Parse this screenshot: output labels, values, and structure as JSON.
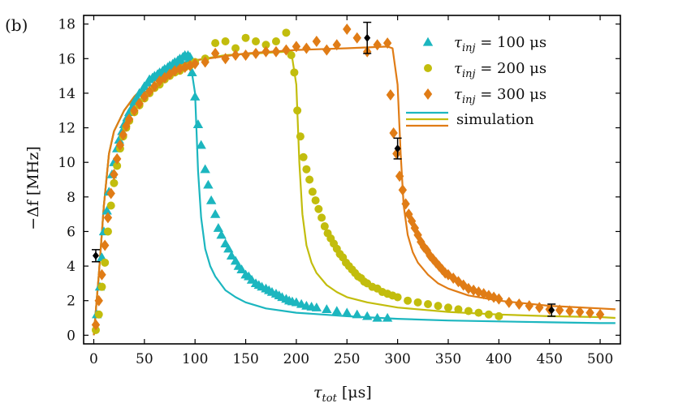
{
  "chart_data": {
    "type": "scatter",
    "panel_label": "(b)",
    "xlabel": "τ_tot [μs]",
    "xlabel_main": "τ",
    "xlabel_sub": "tot",
    "xlabel_unit": " [μs]",
    "ylabel": "−Δf [MHz]",
    "xlim": [
      -10,
      520
    ],
    "ylim": [
      -0.5,
      18.5
    ],
    "xticks": [
      0,
      50,
      100,
      150,
      200,
      250,
      300,
      350,
      400,
      450,
      500
    ],
    "yticks": [
      0,
      2,
      4,
      6,
      8,
      10,
      12,
      14,
      16,
      18
    ],
    "grid": false,
    "legend_position": "top-right",
    "colors": {
      "s100": "#1cb6bf",
      "s200": "#c2bd0d",
      "s300": "#e07c16",
      "errorbar": "#000000"
    },
    "series": [
      {
        "name": "τ_inj = 100 μs",
        "legend_main": "τ",
        "legend_sub": "inj",
        "legend_value": " = 100 μs",
        "marker": "triangle",
        "color": "#1cb6bf",
        "x": [
          3,
          6,
          8,
          10,
          13,
          15,
          18,
          20,
          23,
          25,
          28,
          30,
          33,
          35,
          38,
          40,
          43,
          45,
          48,
          50,
          53,
          55,
          58,
          60,
          63,
          65,
          68,
          70,
          73,
          75,
          78,
          80,
          83,
          85,
          88,
          90,
          93,
          95,
          97,
          100,
          103,
          106,
          110,
          113,
          116,
          120,
          123,
          126,
          130,
          133,
          136,
          140,
          143,
          146,
          150,
          153,
          156,
          160,
          163,
          166,
          170,
          173,
          176,
          180,
          183,
          186,
          190,
          193,
          196,
          200,
          205,
          210,
          215,
          220,
          230,
          240,
          250,
          260,
          270,
          280,
          290
        ],
        "y": [
          1.2,
          2.8,
          4.5,
          6.0,
          7.2,
          8.3,
          9.3,
          10.0,
          10.8,
          11.3,
          11.8,
          12.2,
          12.6,
          12.9,
          13.2,
          13.5,
          13.7,
          14.0,
          14.2,
          14.4,
          14.6,
          14.8,
          14.9,
          15.0,
          15.1,
          15.2,
          15.3,
          15.4,
          15.5,
          15.6,
          15.7,
          15.8,
          15.9,
          16.0,
          16.1,
          16.2,
          16.2,
          16.1,
          15.2,
          13.8,
          12.2,
          11.0,
          9.6,
          8.7,
          7.8,
          7.0,
          6.2,
          5.8,
          5.3,
          5.0,
          4.6,
          4.3,
          4.0,
          3.8,
          3.5,
          3.4,
          3.2,
          3.0,
          2.9,
          2.8,
          2.7,
          2.6,
          2.5,
          2.4,
          2.3,
          2.2,
          2.1,
          2.0,
          1.95,
          1.9,
          1.8,
          1.7,
          1.65,
          1.6,
          1.5,
          1.4,
          1.3,
          1.2,
          1.1,
          1.0,
          1.0
        ]
      },
      {
        "name": "τ_inj = 200 μs",
        "legend_main": "τ",
        "legend_sub": "inj",
        "legend_value": " = 200 μs",
        "marker": "circle",
        "color": "#c2bd0d",
        "x": [
          2,
          5,
          8,
          11,
          14,
          17,
          20,
          23,
          26,
          29,
          32,
          35,
          40,
          45,
          50,
          55,
          60,
          65,
          70,
          75,
          80,
          85,
          90,
          95,
          100,
          110,
          120,
          130,
          140,
          150,
          160,
          170,
          180,
          190,
          195,
          198,
          201,
          204,
          207,
          210,
          213,
          216,
          219,
          222,
          225,
          228,
          231,
          234,
          237,
          240,
          243,
          246,
          249,
          252,
          255,
          258,
          261,
          264,
          267,
          270,
          275,
          280,
          285,
          290,
          295,
          300,
          310,
          320,
          330,
          340,
          350,
          360,
          370,
          380,
          390,
          400
        ],
        "y": [
          0.3,
          1.2,
          2.8,
          4.2,
          6.0,
          7.5,
          8.8,
          9.8,
          10.8,
          11.5,
          12.0,
          12.4,
          12.9,
          13.3,
          13.7,
          14.0,
          14.3,
          14.5,
          14.8,
          15.0,
          15.2,
          15.3,
          15.5,
          15.6,
          15.8,
          16.0,
          16.9,
          17.0,
          16.6,
          17.2,
          17.0,
          16.8,
          17.0,
          17.5,
          16.2,
          15.2,
          13.0,
          11.5,
          10.3,
          9.6,
          9.0,
          8.3,
          7.8,
          7.3,
          6.8,
          6.3,
          5.9,
          5.6,
          5.3,
          5.0,
          4.7,
          4.5,
          4.2,
          4.0,
          3.8,
          3.6,
          3.4,
          3.3,
          3.1,
          3.0,
          2.8,
          2.7,
          2.5,
          2.4,
          2.3,
          2.2,
          2.0,
          1.9,
          1.8,
          1.7,
          1.6,
          1.5,
          1.4,
          1.3,
          1.2,
          1.1
        ]
      },
      {
        "name": "τ_inj = 300 μs",
        "legend_main": "τ",
        "legend_sub": "inj",
        "legend_value": " = 300 μs",
        "marker": "diamond",
        "color": "#e07c16",
        "x": [
          2,
          5,
          8,
          11,
          14,
          17,
          20,
          23,
          26,
          29,
          32,
          35,
          40,
          45,
          50,
          55,
          60,
          65,
          70,
          75,
          80,
          85,
          90,
          95,
          100,
          110,
          120,
          130,
          140,
          150,
          160,
          170,
          180,
          190,
          200,
          210,
          220,
          230,
          240,
          250,
          260,
          270,
          280,
          290,
          293,
          296,
          299,
          302,
          305,
          308,
          311,
          314,
          317,
          320,
          323,
          326,
          329,
          332,
          335,
          338,
          341,
          344,
          347,
          350,
          355,
          360,
          365,
          370,
          375,
          380,
          385,
          390,
          395,
          400,
          410,
          420,
          430,
          440,
          450,
          460,
          470,
          480,
          490,
          500
        ],
        "y": [
          0.6,
          2.0,
          3.5,
          5.2,
          6.8,
          8.2,
          9.3,
          10.2,
          11.0,
          11.6,
          12.1,
          12.5,
          13.0,
          13.4,
          13.8,
          14.1,
          14.4,
          14.7,
          14.9,
          15.1,
          15.3,
          15.4,
          15.5,
          15.6,
          15.7,
          15.8,
          16.3,
          16.0,
          16.2,
          16.2,
          16.3,
          16.4,
          16.4,
          16.5,
          16.7,
          16.6,
          17.0,
          16.5,
          16.8,
          17.7,
          17.2,
          16.4,
          16.8,
          16.9,
          13.9,
          11.7,
          10.5,
          9.2,
          8.4,
          7.6,
          7.0,
          6.6,
          6.2,
          5.8,
          5.4,
          5.1,
          4.9,
          4.6,
          4.4,
          4.2,
          4.0,
          3.8,
          3.6,
          3.5,
          3.3,
          3.1,
          2.9,
          2.7,
          2.6,
          2.5,
          2.4,
          2.3,
          2.2,
          2.1,
          1.9,
          1.8,
          1.7,
          1.6,
          1.5,
          1.45,
          1.4,
          1.35,
          1.3,
          1.2
        ]
      }
    ],
    "simulation": {
      "name": "simulation",
      "curves": [
        {
          "color": "#1cb6bf",
          "x": [
            0,
            5,
            10,
            15,
            20,
            30,
            40,
            50,
            60,
            70,
            80,
            90,
            95,
            100,
            103,
            106,
            110,
            115,
            120,
            130,
            140,
            150,
            170,
            200,
            250,
            300,
            350,
            400,
            450,
            500,
            515
          ],
          "y": [
            0,
            3.5,
            7.5,
            10.5,
            11.8,
            13.0,
            13.8,
            14.4,
            14.9,
            15.3,
            15.6,
            15.8,
            15.9,
            14.0,
            9.5,
            6.8,
            5.0,
            4.0,
            3.4,
            2.6,
            2.2,
            1.9,
            1.55,
            1.3,
            1.1,
            0.95,
            0.85,
            0.8,
            0.75,
            0.7,
            0.7
          ]
        },
        {
          "color": "#c2bd0d",
          "x": [
            0,
            5,
            10,
            15,
            20,
            30,
            40,
            50,
            70,
            100,
            130,
            160,
            190,
            195,
            200,
            203,
            206,
            210,
            215,
            220,
            230,
            240,
            250,
            270,
            300,
            350,
            400,
            450,
            500,
            515
          ],
          "y": [
            0,
            3.5,
            7.5,
            10.5,
            11.8,
            13.0,
            13.8,
            14.4,
            15.3,
            15.9,
            16.2,
            16.3,
            16.4,
            16.4,
            14.5,
            10.0,
            7.0,
            5.2,
            4.2,
            3.6,
            2.9,
            2.5,
            2.2,
            1.9,
            1.6,
            1.35,
            1.2,
            1.1,
            1.05,
            1.0
          ]
        },
        {
          "color": "#e07c16",
          "x": [
            0,
            5,
            10,
            15,
            20,
            30,
            40,
            50,
            70,
            100,
            150,
            200,
            250,
            290,
            295,
            300,
            303,
            306,
            310,
            315,
            320,
            330,
            340,
            350,
            370,
            400,
            450,
            500,
            515
          ],
          "y": [
            0,
            3.5,
            7.5,
            10.5,
            11.8,
            13.0,
            13.8,
            14.4,
            15.3,
            15.9,
            16.3,
            16.5,
            16.6,
            16.7,
            16.6,
            14.5,
            10.5,
            7.5,
            5.8,
            4.8,
            4.2,
            3.5,
            3.0,
            2.7,
            2.3,
            2.0,
            1.7,
            1.55,
            1.5
          ]
        }
      ]
    },
    "error_bars": {
      "color": "#000000",
      "points": [
        {
          "x": 2,
          "y": 4.6,
          "err": 0.35
        },
        {
          "x": 270,
          "y": 17.2,
          "err": 0.9
        },
        {
          "x": 300,
          "y": 10.8,
          "err": 0.6
        },
        {
          "x": 452,
          "y": 1.45,
          "err": 0.35
        }
      ]
    }
  }
}
